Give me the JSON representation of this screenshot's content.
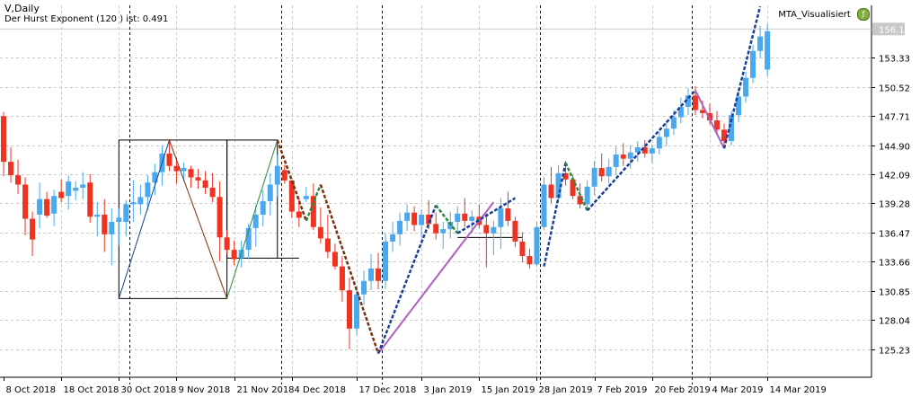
{
  "symbol_label": "V,Daily",
  "indicator_label": "Der Hurst Exponent (120 ) ist: 0.491",
  "indicator_name": "MTA_Visualisiert",
  "chart_data": {
    "type": "candlestick",
    "title": "",
    "xlabel": "",
    "ylabel": "",
    "ylim": [
      122.5,
      158.4
    ],
    "current_price": 156.12,
    "y_ticks": [
      125.23,
      128.04,
      130.85,
      133.66,
      136.47,
      139.28,
      142.09,
      144.9,
      147.71,
      150.52,
      153.33,
      156.12
    ],
    "x_labels": [
      {
        "bar": 0,
        "label": "8 Oct 2018"
      },
      {
        "bar": 8,
        "label": "18 Oct 2018"
      },
      {
        "bar": 16,
        "label": "30 Oct 2018"
      },
      {
        "bar": 24,
        "label": "9 Nov 2018"
      },
      {
        "bar": 32,
        "label": "21 Nov 2018"
      },
      {
        "bar": 40,
        "label": "4 Dec 2018"
      },
      {
        "bar": 49,
        "label": "17 Dec 2018"
      },
      {
        "bar": 58,
        "label": "3 Jan 2019"
      },
      {
        "bar": 66,
        "label": "15 Jan 2019"
      },
      {
        "bar": 74,
        "label": "28 Jan 2019"
      },
      {
        "bar": 82,
        "label": "7 Feb 2019"
      },
      {
        "bar": 90,
        "label": "20 Feb 2019"
      },
      {
        "bar": 98,
        "label": "4 Mar 2019"
      },
      {
        "bar": 106,
        "label": "14 Mar 2019"
      }
    ],
    "period_separators": [
      18,
      39,
      53,
      75,
      96
    ],
    "grid": true,
    "bull_color": "#4aa8ee",
    "bear_color": "#ee3322",
    "candles": [
      [
        147.7,
        148.1,
        141.9,
        143.3
      ],
      [
        143.3,
        144.7,
        141.3,
        142.0
      ],
      [
        142.0,
        143.5,
        140.2,
        141.1
      ],
      [
        141.1,
        141.8,
        136.2,
        137.8
      ],
      [
        137.8,
        138.5,
        134.2,
        135.8
      ],
      [
        138.2,
        141.3,
        136.9,
        139.7
      ],
      [
        139.7,
        140.4,
        137.9,
        138.1
      ],
      [
        138.3,
        140.6,
        137.1,
        140.0
      ],
      [
        140.4,
        141.6,
        139.4,
        139.8
      ],
      [
        140.0,
        142.0,
        138.7,
        141.4
      ],
      [
        140.5,
        141.4,
        139.6,
        140.8
      ],
      [
        140.8,
        142.3,
        139.7,
        141.1
      ],
      [
        141.3,
        142.1,
        137.4,
        138.0
      ],
      [
        138.0,
        139.4,
        136.1,
        138.2
      ],
      [
        138.2,
        139.7,
        134.6,
        136.3
      ],
      [
        136.3,
        138.8,
        133.3,
        137.5
      ],
      [
        137.5,
        138.8,
        135.2,
        137.9
      ],
      [
        137.5,
        139.6,
        136.1,
        139.2
      ],
      [
        139.2,
        141.5,
        137.5,
        139.4
      ],
      [
        139.2,
        141.1,
        138.2,
        139.9
      ],
      [
        139.9,
        142.0,
        138.6,
        141.3
      ],
      [
        141.3,
        143.1,
        140.1,
        142.3
      ],
      [
        142.3,
        144.9,
        141.0,
        144.1
      ],
      [
        144.1,
        145.5,
        142.4,
        142.9
      ],
      [
        142.9,
        143.7,
        141.2,
        142.4
      ],
      [
        142.4,
        143.2,
        141.4,
        142.7
      ],
      [
        142.6,
        142.9,
        140.8,
        141.8
      ],
      [
        141.8,
        142.6,
        140.7,
        141.5
      ],
      [
        141.5,
        142.4,
        140.2,
        140.8
      ],
      [
        140.8,
        142.2,
        139.4,
        139.9
      ],
      [
        139.9,
        141.4,
        133.7,
        136.0
      ],
      [
        136.0,
        136.7,
        134.4,
        134.8
      ],
      [
        134.8,
        135.7,
        133.3,
        133.9
      ],
      [
        134.0,
        135.7,
        133.1,
        134.8
      ],
      [
        134.8,
        137.3,
        133.9,
        136.9
      ],
      [
        136.9,
        139.1,
        135.1,
        138.2
      ],
      [
        138.2,
        140.6,
        137.1,
        139.5
      ],
      [
        139.5,
        142.2,
        138.1,
        141.1
      ],
      [
        141.1,
        144.0,
        139.9,
        142.9
      ],
      [
        142.5,
        143.0,
        141.2,
        141.5
      ],
      [
        141.5,
        141.5,
        137.9,
        138.5
      ],
      [
        138.5,
        139.9,
        137.0,
        137.9
      ],
      [
        139.7,
        140.9,
        139.4,
        140.0
      ],
      [
        140.0,
        141.2,
        136.7,
        137.0
      ],
      [
        137.0,
        138.9,
        135.4,
        135.9
      ],
      [
        135.9,
        138.2,
        134.0,
        134.6
      ],
      [
        134.6,
        135.4,
        132.9,
        133.2
      ],
      [
        133.2,
        134.2,
        129.8,
        130.9
      ],
      [
        130.9,
        132.1,
        125.2,
        127.2
      ],
      [
        127.2,
        131.3,
        126.6,
        130.5
      ],
      [
        130.5,
        132.8,
        129.5,
        131.8
      ],
      [
        131.8,
        134.4,
        130.9,
        133.0
      ],
      [
        133.0,
        134.5,
        131.0,
        131.8
      ],
      [
        131.8,
        136.4,
        131.0,
        135.6
      ],
      [
        135.6,
        137.5,
        134.6,
        136.3
      ],
      [
        136.3,
        138.4,
        135.2,
        137.6
      ],
      [
        137.6,
        139.2,
        136.6,
        138.4
      ],
      [
        138.4,
        139.0,
        136.6,
        137.2
      ],
      [
        137.2,
        138.7,
        136.0,
        138.2
      ],
      [
        138.2,
        139.6,
        136.8,
        137.3
      ],
      [
        137.3,
        138.4,
        135.8,
        136.4
      ],
      [
        136.4,
        137.5,
        134.9,
        136.8
      ],
      [
        136.8,
        138.5,
        135.9,
        137.5
      ],
      [
        137.5,
        139.0,
        136.4,
        138.3
      ],
      [
        138.3,
        139.8,
        137.0,
        137.6
      ],
      [
        137.6,
        138.6,
        136.4,
        138.0
      ],
      [
        138.0,
        139.2,
        136.9,
        137.2
      ],
      [
        137.2,
        138.3,
        133.1,
        136.4
      ],
      [
        136.4,
        137.6,
        134.3,
        137.0
      ],
      [
        137.0,
        139.8,
        134.9,
        138.8
      ],
      [
        138.8,
        140.4,
        137.1,
        137.6
      ],
      [
        137.6,
        138.0,
        135.1,
        135.6
      ],
      [
        135.6,
        136.5,
        133.6,
        134.2
      ],
      [
        134.2,
        134.9,
        133.0,
        133.4
      ],
      [
        133.4,
        137.5,
        133.2,
        137.0
      ],
      [
        137.0,
        141.8,
        136.7,
        141.1
      ],
      [
        141.1,
        142.8,
        139.3,
        139.8
      ],
      [
        139.8,
        143.0,
        139.4,
        142.2
      ],
      [
        142.2,
        143.4,
        141.0,
        141.6
      ],
      [
        141.6,
        142.0,
        139.7,
        140.0
      ],
      [
        140.0,
        141.2,
        138.8,
        139.2
      ],
      [
        139.2,
        141.5,
        138.8,
        140.9
      ],
      [
        140.9,
        143.4,
        140.1,
        142.7
      ],
      [
        142.7,
        144.1,
        141.4,
        141.9
      ],
      [
        141.9,
        143.6,
        141.2,
        142.8
      ],
      [
        142.8,
        144.8,
        142.0,
        144.0
      ],
      [
        144.0,
        145.1,
        142.9,
        143.6
      ],
      [
        143.6,
        144.9,
        142.6,
        144.2
      ],
      [
        144.2,
        145.3,
        143.3,
        144.7
      ],
      [
        144.7,
        145.4,
        143.7,
        144.1
      ],
      [
        144.1,
        145.0,
        143.2,
        144.6
      ],
      [
        144.6,
        146.2,
        144.0,
        145.7
      ],
      [
        145.7,
        147.3,
        144.8,
        146.5
      ],
      [
        146.5,
        148.3,
        145.9,
        147.6
      ],
      [
        147.6,
        149.5,
        147.0,
        148.6
      ],
      [
        148.6,
        150.4,
        147.8,
        149.7
      ],
      [
        149.7,
        150.6,
        147.8,
        148.3
      ],
      [
        148.3,
        149.2,
        147.5,
        148.0
      ],
      [
        148.0,
        148.9,
        146.9,
        147.3
      ],
      [
        147.3,
        148.2,
        145.9,
        146.4
      ],
      [
        146.4,
        147.0,
        144.8,
        145.3
      ],
      [
        145.3,
        148.2,
        144.9,
        147.8
      ],
      [
        147.8,
        150.2,
        147.1,
        149.6
      ],
      [
        149.6,
        152.0,
        149.0,
        151.4
      ],
      [
        151.4,
        154.6,
        150.9,
        154.0
      ],
      [
        154.0,
        156.4,
        153.3,
        155.4
      ],
      [
        152.2,
        156.6,
        151.6,
        155.9
      ]
    ],
    "zigzag_segments": [
      {
        "from": [
          16,
          130.1
        ],
        "to": [
          23,
          145.4
        ],
        "color": "#1a3f9a",
        "style": "solid"
      },
      {
        "from": [
          23,
          145.4
        ],
        "to": [
          31,
          130.1
        ],
        "color": "#7a3010",
        "style": "solid"
      },
      {
        "from": [
          31,
          130.1
        ],
        "to": [
          38,
          145.4
        ],
        "color": "#2e8b3a",
        "style": "solid"
      },
      {
        "from": [
          38,
          145.4
        ],
        "to": [
          42,
          137.6
        ],
        "color": "#7a3010",
        "style": "dashed"
      },
      {
        "from": [
          42,
          137.6
        ],
        "to": [
          44,
          141.1
        ],
        "color": "#2e8b3a",
        "style": "dashed"
      },
      {
        "from": [
          44,
          141.1
        ],
        "to": [
          52,
          124.8
        ],
        "color": "#7a3010",
        "style": "dashed"
      },
      {
        "from": [
          52,
          124.8
        ],
        "to": [
          60,
          139.1
        ],
        "color": "#1a3f9a",
        "style": "dashed"
      },
      {
        "from": [
          60,
          139.1
        ],
        "to": [
          63,
          136.4
        ],
        "color": "#2e8b3a",
        "style": "dashed"
      },
      {
        "from": [
          63,
          136.4
        ],
        "to": [
          71,
          139.8
        ],
        "color": "#1a3f9a",
        "style": "dashed"
      },
      {
        "from": [
          75,
          133.2
        ],
        "to": [
          78,
          143.2
        ],
        "color": "#1a3f9a",
        "style": "dashed"
      },
      {
        "from": [
          78,
          143.2
        ],
        "to": [
          81,
          138.6
        ],
        "color": "#2e8b3a",
        "style": "dashed"
      },
      {
        "from": [
          81,
          138.6
        ],
        "to": [
          96,
          150.2
        ],
        "color": "#1a3f9a",
        "style": "dashed"
      },
      {
        "from": [
          100,
          144.6
        ],
        "to": [
          105,
          158.3
        ],
        "color": "#1a3f9a",
        "style": "dashed"
      }
    ],
    "pattern_lines": [
      {
        "from": [
          52,
          124.8
        ],
        "to": [
          68,
          139.4
        ],
        "color": "#b060c0"
      },
      {
        "from": [
          96,
          150.2
        ],
        "to": [
          100,
          144.6
        ],
        "color": "#b060c0"
      }
    ],
    "rect_boxes": [
      {
        "x1": 16,
        "x2": 31,
        "y1": 130.1,
        "y2": 145.4
      },
      {
        "x1": 31,
        "x2": 38,
        "y1": 134.0,
        "y2": 145.4
      },
      {
        "x1": 38,
        "x2": 41,
        "y1": 134.0,
        "y2": 134.0
      },
      {
        "x1": 63,
        "x2": 72,
        "y1": 136.0,
        "y2": 136.0
      }
    ]
  }
}
